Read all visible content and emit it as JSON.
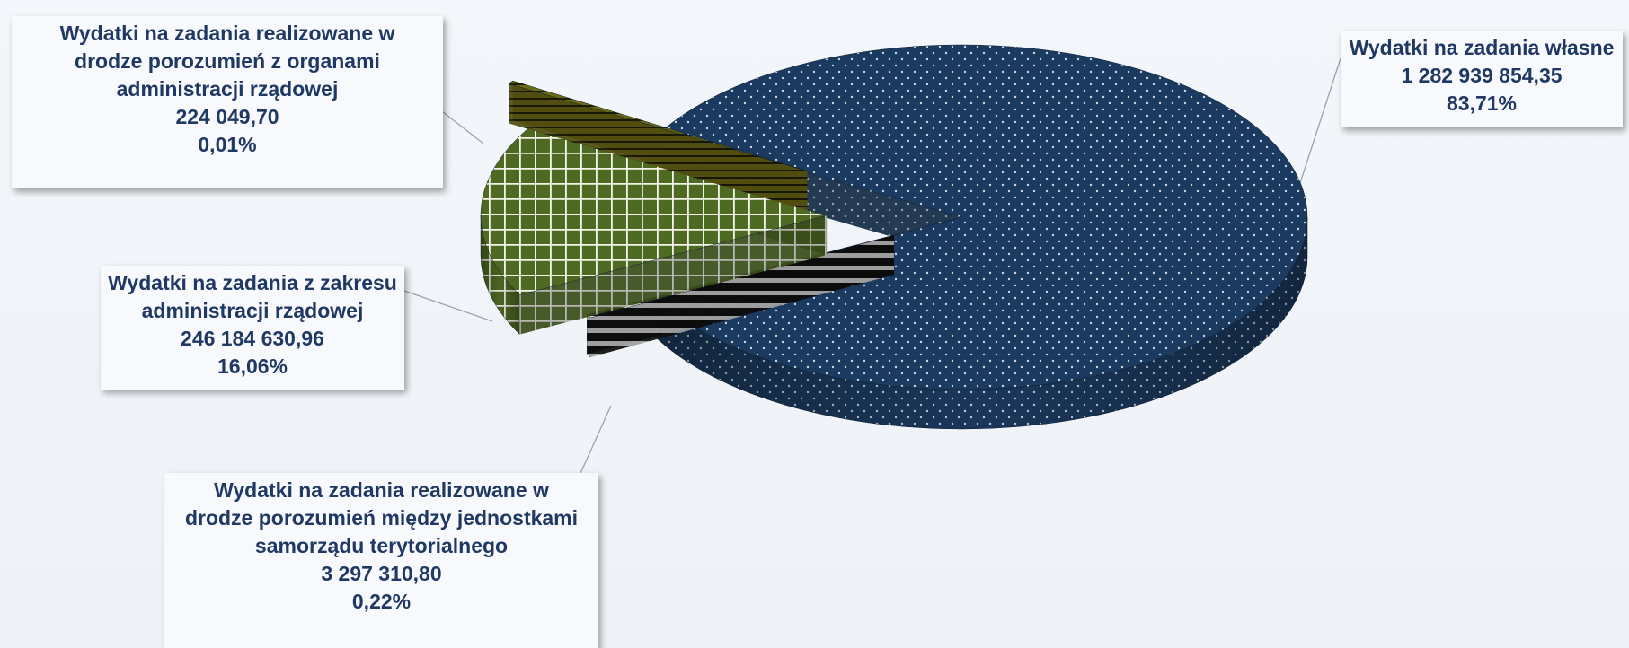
{
  "chart_data": {
    "type": "pie",
    "title": "",
    "slices": [
      {
        "label": "Wydatki na zadania własne",
        "value": 1282939854.35,
        "value_text": "1 282 939 854,35",
        "percent_text": "83,71%",
        "color": "#1b3a5f",
        "pattern": "dots"
      },
      {
        "label": "Wydatki na zadania realizowane w drodze porozumień między jednostkami samorządu terytorialnego",
        "value": 3297310.8,
        "value_text": "3 297 310,80",
        "percent_text": "0,22%",
        "color": "#111111",
        "pattern": "stripes"
      },
      {
        "label": "Wydatki na zadania z zakresu administracji rządowej",
        "value": 246184630.96,
        "value_text": "246 184 630,96",
        "percent_text": "16,06%",
        "color": "#4e6a22",
        "pattern": "grid"
      },
      {
        "label": "Wydatki na zadania realizowane w drodze porozumień z organami administracji rządowej",
        "value": 224049.7,
        "value_text": "224 049,70",
        "percent_text": "0,01%",
        "color": "#6e6a14",
        "pattern": "stripes"
      }
    ],
    "legend": "none"
  },
  "labels": {
    "own": {
      "lines": [
        "Wydatki na zadania własne"
      ],
      "value": "1 282 939 854,35",
      "percent": "83,71%"
    },
    "gov_agreements": {
      "lines": [
        "Wydatki na zadania realizowane w",
        "drodze porozumień z organami",
        "administracji rządowej"
      ],
      "value": "224 049,70",
      "percent": "0,01%"
    },
    "gov_tasks": {
      "lines": [
        "Wydatki na zadania z zakresu",
        "administracji rządowej"
      ],
      "value": "246 184 630,96",
      "percent": "16,06%"
    },
    "jst_agreements": {
      "lines": [
        "Wydatki na zadania realizowane w",
        "drodze porozumień między jednostkami",
        "samorządu terytorialnego"
      ],
      "value": "3 297 310,80",
      "percent": "0,22%"
    }
  }
}
